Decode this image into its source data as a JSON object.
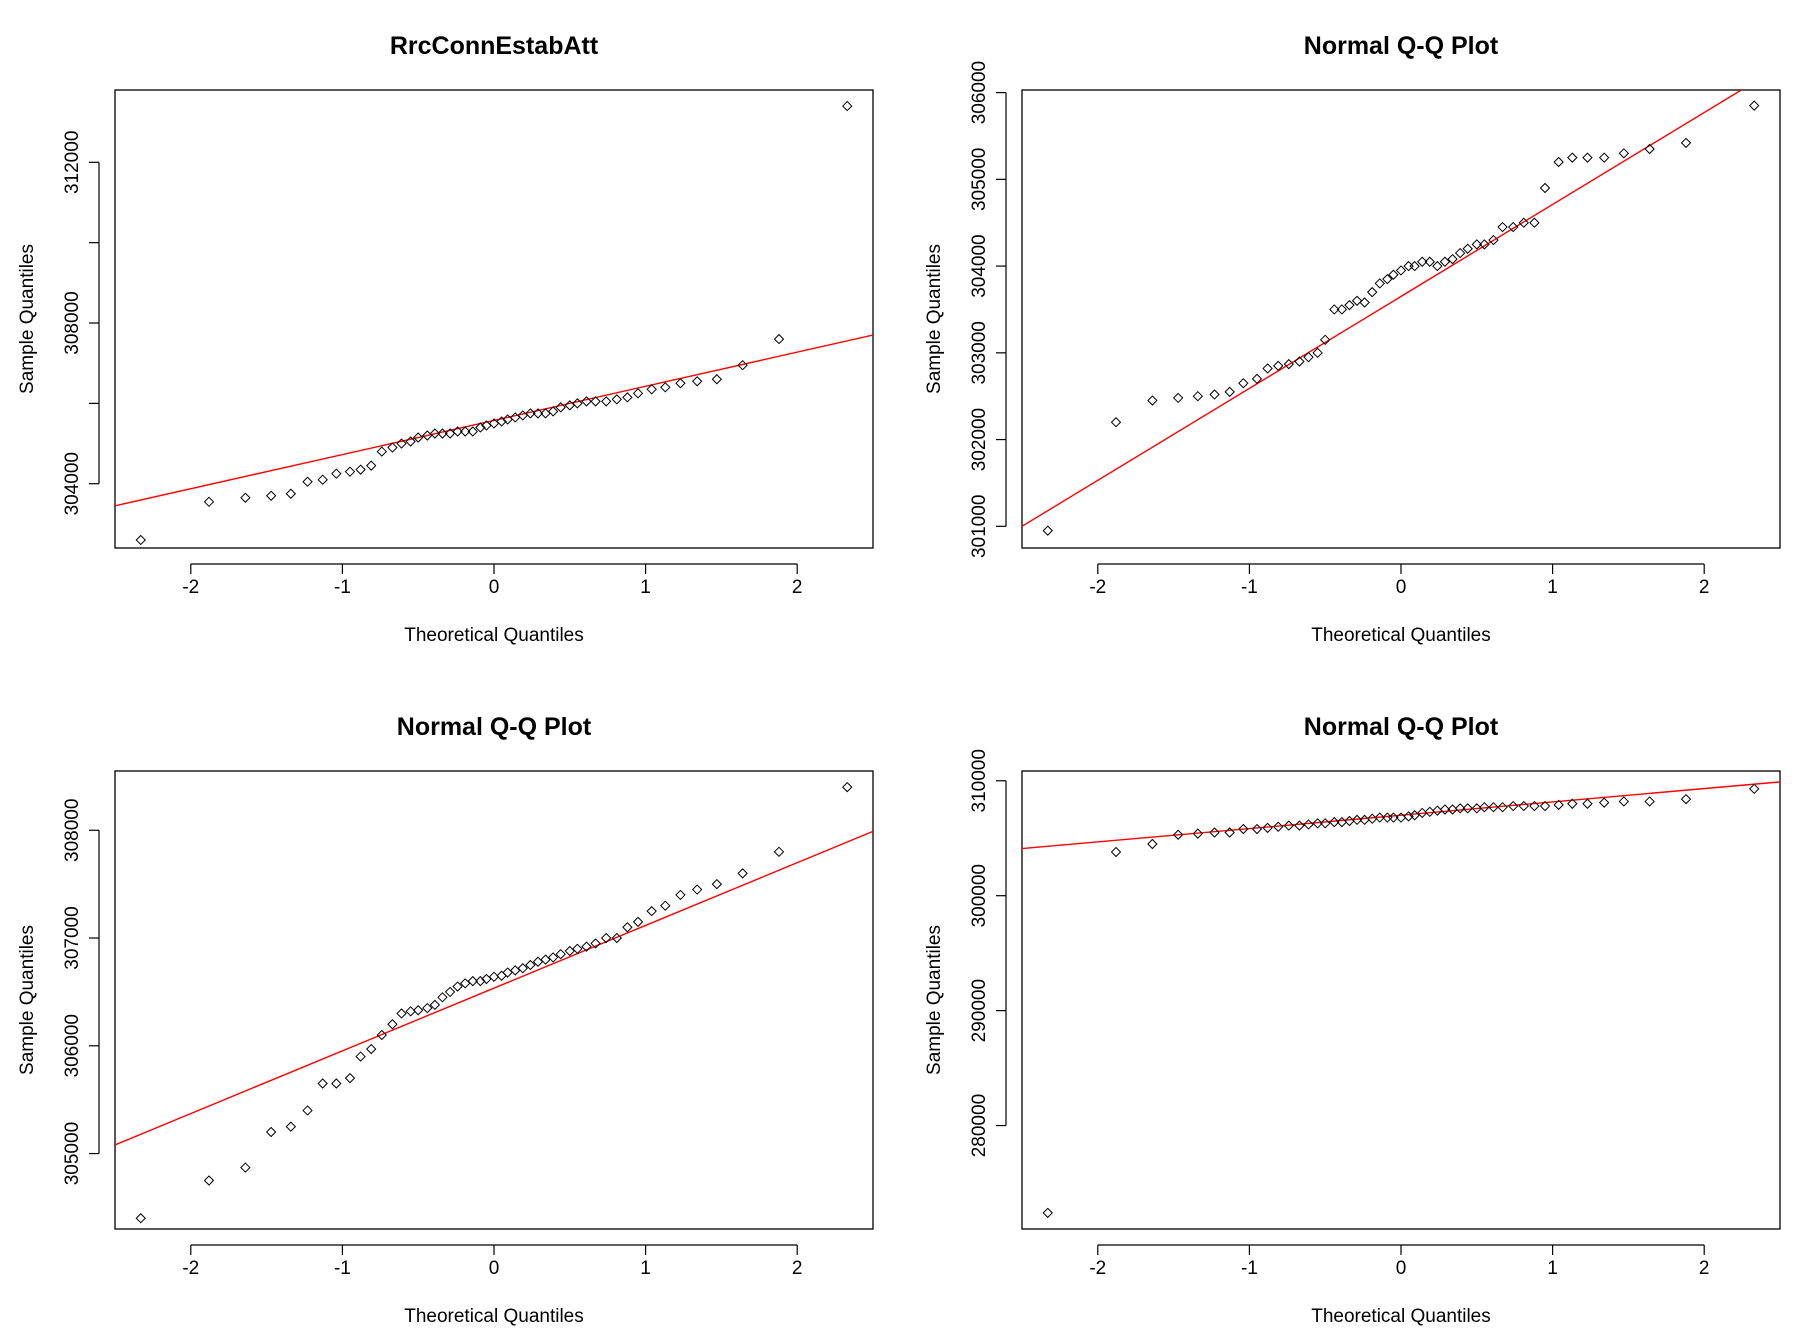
{
  "chart_data": [
    {
      "type": "scatter",
      "title": "RrcConnEstabAtt",
      "xlabel": "Theoretical Quantiles",
      "ylabel": "Sample Quantiles",
      "xlim": [
        -2.5,
        2.5
      ],
      "ylim": [
        302400,
        313800
      ],
      "x_ticks": [
        -2,
        -1,
        0,
        1,
        2
      ],
      "y_ticks": [
        304000,
        306000,
        308000,
        310000,
        312000
      ],
      "y_tick_labels": [
        "304000",
        "",
        "308000",
        "",
        "312000"
      ],
      "grid": false,
      "point_color": "#000000",
      "line_color": "#ff0000",
      "qq_line": {
        "x": [
          -2.5,
          2.5
        ],
        "y": [
          303450,
          307700
        ]
      },
      "series": [
        {
          "x": [
            -2.33,
            -1.88,
            -1.64,
            -1.47,
            -1.34,
            -1.23,
            -1.13,
            -1.04,
            -0.95,
            -0.88,
            -0.81,
            -0.74,
            -0.67,
            -0.61,
            -0.55,
            -0.5,
            -0.44,
            -0.39,
            -0.34,
            -0.29,
            -0.24,
            -0.19,
            -0.14,
            -0.09,
            -0.05,
            0.0,
            0.05,
            0.09,
            0.14,
            0.19,
            0.24,
            0.29,
            0.34,
            0.39,
            0.44,
            0.5,
            0.55,
            0.61,
            0.67,
            0.74,
            0.81,
            0.88,
            0.95,
            1.04,
            1.13,
            1.23,
            1.34,
            1.47,
            1.64,
            1.88,
            2.33
          ],
          "y": [
            302600,
            303550,
            303650,
            303700,
            303750,
            304050,
            304100,
            304250,
            304300,
            304350,
            304450,
            304800,
            304900,
            305000,
            305050,
            305150,
            305200,
            305250,
            305250,
            305250,
            305300,
            305300,
            305300,
            305400,
            305450,
            305500,
            305550,
            305600,
            305650,
            305700,
            305750,
            305750,
            305750,
            305800,
            305900,
            305950,
            306000,
            306050,
            306050,
            306050,
            306100,
            306150,
            306250,
            306350,
            306400,
            306500,
            306550,
            306600,
            306950,
            307600,
            313400
          ]
        }
      ]
    },
    {
      "type": "scatter",
      "title": "Normal Q-Q Plot",
      "xlabel": "Theoretical Quantiles",
      "ylabel": "Sample Quantiles",
      "xlim": [
        -2.5,
        2.5
      ],
      "ylim": [
        300750,
        306030
      ],
      "x_ticks": [
        -2,
        -1,
        0,
        1,
        2
      ],
      "y_ticks": [
        301000,
        302000,
        303000,
        304000,
        305000,
        306000
      ],
      "y_tick_labels": [
        "301000",
        "302000",
        "303000",
        "304000",
        "305000",
        "306000"
      ],
      "grid": false,
      "point_color": "#000000",
      "line_color": "#ff0000",
      "qq_line": {
        "x": [
          -2.5,
          2.5
        ],
        "y": [
          301000,
          306300
        ]
      },
      "series": [
        {
          "x": [
            -2.33,
            -1.88,
            -1.64,
            -1.47,
            -1.34,
            -1.23,
            -1.13,
            -1.04,
            -0.95,
            -0.88,
            -0.81,
            -0.74,
            -0.67,
            -0.61,
            -0.55,
            -0.5,
            -0.44,
            -0.39,
            -0.34,
            -0.29,
            -0.24,
            -0.19,
            -0.14,
            -0.09,
            -0.05,
            0.0,
            0.05,
            0.09,
            0.14,
            0.19,
            0.24,
            0.29,
            0.34,
            0.39,
            0.44,
            0.5,
            0.55,
            0.61,
            0.67,
            0.74,
            0.81,
            0.88,
            0.95,
            1.04,
            1.13,
            1.23,
            1.34,
            1.47,
            1.64,
            1.88,
            2.33
          ],
          "y": [
            300950,
            302200,
            302450,
            302480,
            302500,
            302520,
            302550,
            302650,
            302700,
            302820,
            302850,
            302870,
            302900,
            302950,
            303000,
            303150,
            303500,
            303500,
            303550,
            303600,
            303580,
            303700,
            303800,
            303850,
            303900,
            303950,
            304000,
            304000,
            304050,
            304050,
            304000,
            304050,
            304080,
            304150,
            304200,
            304250,
            304250,
            304300,
            304450,
            304450,
            304500,
            304500,
            304900,
            305200,
            305250,
            305250,
            305250,
            305300,
            305350,
            305420,
            305850
          ]
        }
      ]
    },
    {
      "type": "scatter",
      "title": "Normal Q-Q Plot",
      "xlabel": "Theoretical Quantiles",
      "ylabel": "Sample Quantiles",
      "xlim": [
        -2.5,
        2.5
      ],
      "ylim": [
        304300,
        308550
      ],
      "x_ticks": [
        -2,
        -1,
        0,
        1,
        2
      ],
      "y_ticks": [
        305000,
        306000,
        307000,
        308000
      ],
      "y_tick_labels": [
        "305000",
        "306000",
        "307000",
        "308000"
      ],
      "grid": false,
      "point_color": "#000000",
      "line_color": "#ff0000",
      "qq_line": {
        "x": [
          -2.5,
          2.5
        ],
        "y": [
          305080,
          307990
        ]
      },
      "series": [
        {
          "x": [
            -2.33,
            -1.88,
            -1.64,
            -1.47,
            -1.34,
            -1.23,
            -1.13,
            -1.04,
            -0.95,
            -0.88,
            -0.81,
            -0.74,
            -0.67,
            -0.61,
            -0.55,
            -0.5,
            -0.44,
            -0.39,
            -0.34,
            -0.29,
            -0.24,
            -0.19,
            -0.14,
            -0.09,
            -0.05,
            0.0,
            0.05,
            0.09,
            0.14,
            0.19,
            0.24,
            0.29,
            0.34,
            0.39,
            0.44,
            0.5,
            0.55,
            0.61,
            0.67,
            0.74,
            0.81,
            0.88,
            0.95,
            1.04,
            1.13,
            1.23,
            1.34,
            1.47,
            1.64,
            1.88,
            2.33
          ],
          "y": [
            304400,
            304750,
            304870,
            305200,
            305250,
            305400,
            305650,
            305650,
            305700,
            305900,
            305970,
            306100,
            306200,
            306300,
            306320,
            306330,
            306350,
            306380,
            306450,
            306500,
            306550,
            306580,
            306600,
            306600,
            306620,
            306640,
            306650,
            306680,
            306700,
            306720,
            306750,
            306780,
            306800,
            306820,
            306850,
            306880,
            306900,
            306920,
            306950,
            307000,
            307000,
            307100,
            307150,
            307250,
            307300,
            307400,
            307450,
            307500,
            307600,
            307800,
            308400
          ]
        }
      ]
    },
    {
      "type": "scatter",
      "title": "Normal Q-Q Plot",
      "xlabel": "Theoretical Quantiles",
      "ylabel": "Sample Quantiles",
      "xlim": [
        -2.5,
        2.5
      ],
      "ylim": [
        271000,
        310850
      ],
      "x_ticks": [
        -2,
        -1,
        0,
        1,
        2
      ],
      "y_ticks": [
        280000,
        290000,
        300000,
        310000
      ],
      "y_tick_labels": [
        "280000",
        "290000",
        "300000",
        "310000"
      ],
      "grid": false,
      "point_color": "#000000",
      "line_color": "#ff0000",
      "qq_line": {
        "x": [
          -2.5,
          2.5
        ],
        "y": [
          304100,
          309900
        ]
      },
      "series": [
        {
          "x": [
            -2.33,
            -1.88,
            -1.64,
            -1.47,
            -1.34,
            -1.23,
            -1.13,
            -1.04,
            -0.95,
            -0.88,
            -0.81,
            -0.74,
            -0.67,
            -0.61,
            -0.55,
            -0.5,
            -0.44,
            -0.39,
            -0.34,
            -0.29,
            -0.24,
            -0.19,
            -0.14,
            -0.09,
            -0.05,
            0.0,
            0.05,
            0.09,
            0.14,
            0.19,
            0.24,
            0.29,
            0.34,
            0.39,
            0.44,
            0.5,
            0.55,
            0.61,
            0.67,
            0.74,
            0.81,
            0.88,
            0.95,
            1.04,
            1.13,
            1.23,
            1.34,
            1.47,
            1.64,
            1.88,
            2.33
          ],
          "y": [
            272400,
            303800,
            304500,
            305300,
            305400,
            305500,
            305500,
            305800,
            305800,
            305900,
            306000,
            306100,
            306100,
            306200,
            306300,
            306300,
            306400,
            306400,
            306500,
            306600,
            306600,
            306700,
            306800,
            306800,
            306800,
            306800,
            306900,
            307000,
            307200,
            307300,
            307400,
            307500,
            307500,
            307600,
            307600,
            307600,
            307700,
            307700,
            307700,
            307800,
            307800,
            307800,
            307800,
            307900,
            308000,
            308000,
            308100,
            308200,
            308200,
            308400,
            309300
          ]
        }
      ]
    }
  ]
}
